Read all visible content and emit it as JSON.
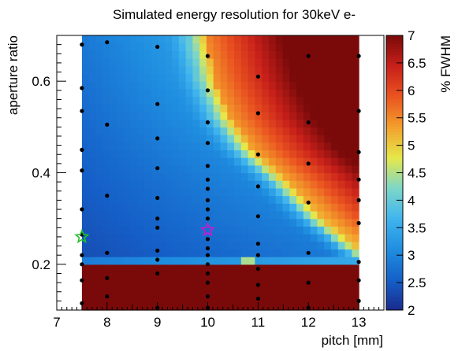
{
  "chart_data": {
    "type": "heatmap",
    "title": "Simulated energy resolution for 30keV e-",
    "xlabel": "pitch [mm]",
    "ylabel": "aperture ratio",
    "zlabel": "% FWHM",
    "xlim": [
      7,
      13.5
    ],
    "ylim": [
      0.1,
      0.7
    ],
    "zlim": [
      2,
      7
    ],
    "x_ticks": [
      "7",
      "8",
      "9",
      "10",
      "11",
      "12",
      "13"
    ],
    "y_ticks": [
      "0.2",
      "0.4",
      "0.6"
    ],
    "z_ticks": [
      "2",
      "2.5",
      "3",
      "3.5",
      "4",
      "4.5",
      "5",
      "5.5",
      "6",
      "6.5",
      "7"
    ],
    "palette": [
      "#1a2a8c",
      "#1560c8",
      "#1f8ee0",
      "#3fb4ee",
      "#7dd6c8",
      "#e6e84a",
      "#f3a02c",
      "#ea5420",
      "#c8201a",
      "#7a0a0a"
    ],
    "map_x_range": [
      7.5,
      13
    ],
    "map_y_range": [
      0.1,
      0.7
    ],
    "boundaries": {
      "low_resolution_band_top": 0.215,
      "blue_to_red_front": [
        [
          0.7,
          9.65
        ],
        [
          0.6,
          9.85
        ],
        [
          0.52,
          10.15
        ],
        [
          0.45,
          10.6
        ],
        [
          0.38,
          11.3
        ],
        [
          0.3,
          12.0
        ],
        [
          0.22,
          12.9
        ]
      ],
      "yellow_band_width_mm": 0.3
    },
    "points": [
      [
        7.5,
        0.68
      ],
      [
        7.5,
        0.585
      ],
      [
        7.5,
        0.535
      ],
      [
        7.5,
        0.45
      ],
      [
        7.5,
        0.405
      ],
      [
        7.5,
        0.32
      ],
      [
        7.5,
        0.265
      ],
      [
        7.5,
        0.22
      ],
      [
        7.5,
        0.2
      ],
      [
        7.5,
        0.165
      ],
      [
        7.5,
        0.115
      ],
      [
        8,
        0.685
      ],
      [
        8,
        0.505
      ],
      [
        8,
        0.35
      ],
      [
        8,
        0.225
      ],
      [
        8,
        0.17
      ],
      [
        8,
        0.13
      ],
      [
        9,
        0.675
      ],
      [
        9,
        0.55
      ],
      [
        9,
        0.475
      ],
      [
        9,
        0.41
      ],
      [
        9,
        0.345
      ],
      [
        9,
        0.3
      ],
      [
        9,
        0.28
      ],
      [
        9,
        0.23
      ],
      [
        9,
        0.21
      ],
      [
        9,
        0.18
      ],
      [
        9,
        0.105
      ],
      [
        10,
        0.655
      ],
      [
        10,
        0.58
      ],
      [
        10,
        0.51
      ],
      [
        10,
        0.465
      ],
      [
        10,
        0.415
      ],
      [
        10,
        0.385
      ],
      [
        10,
        0.365
      ],
      [
        10,
        0.34
      ],
      [
        10,
        0.32
      ],
      [
        10,
        0.3
      ],
      [
        10,
        0.255
      ],
      [
        10,
        0.235
      ],
      [
        10,
        0.22
      ],
      [
        10,
        0.2
      ],
      [
        10,
        0.18
      ],
      [
        10,
        0.16
      ],
      [
        10,
        0.13
      ],
      [
        10,
        0.105
      ],
      [
        11,
        0.61
      ],
      [
        11,
        0.53
      ],
      [
        11,
        0.44
      ],
      [
        11,
        0.37
      ],
      [
        11,
        0.305
      ],
      [
        11,
        0.245
      ],
      [
        11,
        0.22
      ],
      [
        11,
        0.19
      ],
      [
        11,
        0.155
      ],
      [
        11,
        0.125
      ],
      [
        12,
        0.655
      ],
      [
        12,
        0.51
      ],
      [
        12,
        0.42
      ],
      [
        12,
        0.335
      ],
      [
        12,
        0.225
      ],
      [
        12,
        0.16
      ],
      [
        12,
        0.105
      ],
      [
        13,
        0.655
      ],
      [
        13,
        0.535
      ],
      [
        13,
        0.445
      ],
      [
        13,
        0.385
      ],
      [
        13,
        0.34
      ],
      [
        13,
        0.29
      ],
      [
        13,
        0.205
      ],
      [
        13,
        0.165
      ],
      [
        13,
        0.12
      ]
    ],
    "markers": [
      {
        "shape": "star",
        "x": 7.5,
        "y": 0.26,
        "color": "#22c02a"
      },
      {
        "shape": "star",
        "x": 10,
        "y": 0.275,
        "color": "#d018d0"
      }
    ]
  }
}
